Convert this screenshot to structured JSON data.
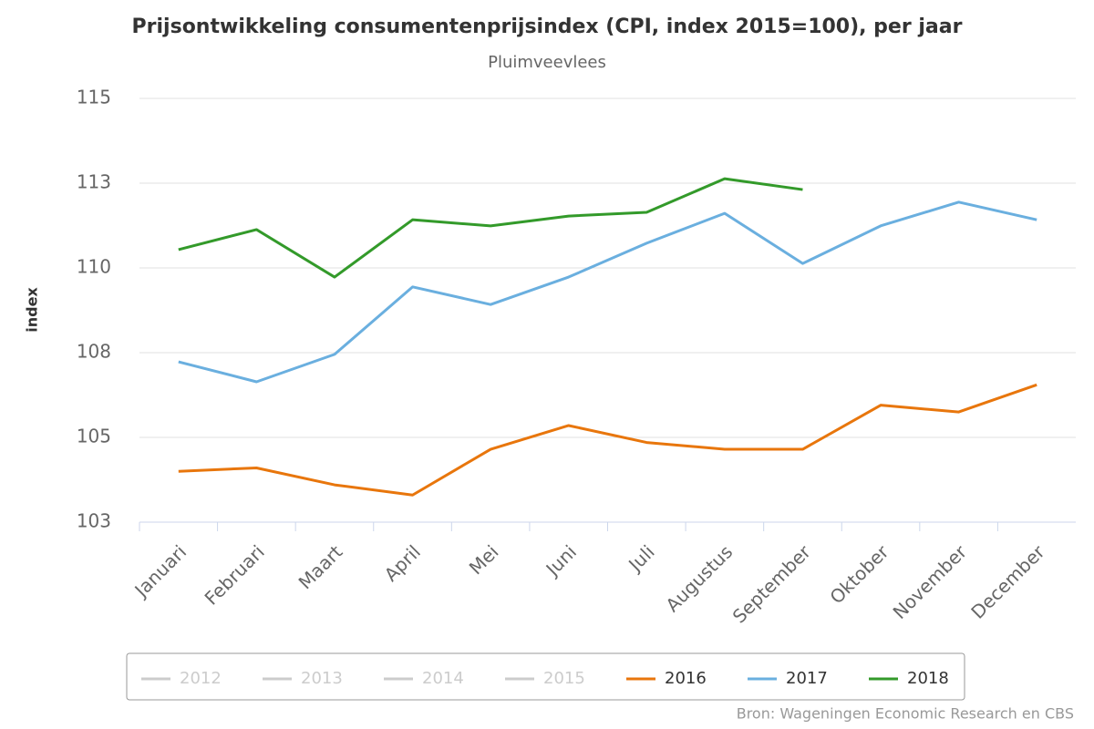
{
  "chart_data": {
    "type": "line",
    "title": "Prijsontwikkeling consumentenprijsindex (CPI, index 2015=100), per jaar",
    "subtitle": "Pluimveevlees",
    "y_label": "index",
    "source": "Bron: Wageningen Economic Research en CBS",
    "categories": [
      "Januari",
      "Februari",
      "Maart",
      "April",
      "Mei",
      "Juni",
      "Juli",
      "Augustus",
      "September",
      "Oktober",
      "November",
      "December"
    ],
    "ylim": [
      102.5,
      115
    ],
    "yticks": [
      {
        "value": 102.5,
        "label": "103"
      },
      105,
      {
        "value": 107.5,
        "label": "108"
      },
      110,
      {
        "value": 112.5,
        "label": "113"
      },
      115
    ],
    "grid": true,
    "legend": "bottom",
    "series": [
      {
        "name": "2012",
        "color": "#cccccc",
        "visible": false,
        "values": [
          null,
          null,
          null,
          null,
          null,
          null,
          null,
          null,
          null,
          null,
          null,
          null
        ]
      },
      {
        "name": "2013",
        "color": "#cccccc",
        "visible": false,
        "values": [
          null,
          null,
          null,
          null,
          null,
          null,
          null,
          null,
          null,
          null,
          null,
          null
        ]
      },
      {
        "name": "2014",
        "color": "#cccccc",
        "visible": false,
        "values": [
          null,
          null,
          null,
          null,
          null,
          null,
          null,
          null,
          null,
          null,
          null,
          null
        ]
      },
      {
        "name": "2015",
        "color": "#cccccc",
        "visible": false,
        "values": [
          null,
          null,
          null,
          null,
          null,
          null,
          null,
          null,
          null,
          null,
          null,
          null
        ]
      },
      {
        "name": "2016",
        "color": "#e8760c",
        "visible": true,
        "values": [
          104.0,
          104.1,
          103.6,
          103.3,
          104.65,
          105.35,
          104.85,
          104.65,
          104.65,
          105.95,
          105.75,
          106.55
        ]
      },
      {
        "name": "2017",
        "color": "#6aafdf",
        "visible": true,
        "values": [
          107.23,
          106.64,
          107.45,
          109.44,
          108.92,
          109.73,
          110.73,
          111.61,
          110.13,
          111.24,
          111.94,
          111.42
        ]
      },
      {
        "name": "2018",
        "color": "#339a2a",
        "visible": true,
        "values": [
          110.54,
          111.13,
          109.73,
          111.42,
          111.24,
          111.53,
          111.64,
          112.63,
          112.31,
          null,
          null,
          null
        ]
      }
    ]
  }
}
